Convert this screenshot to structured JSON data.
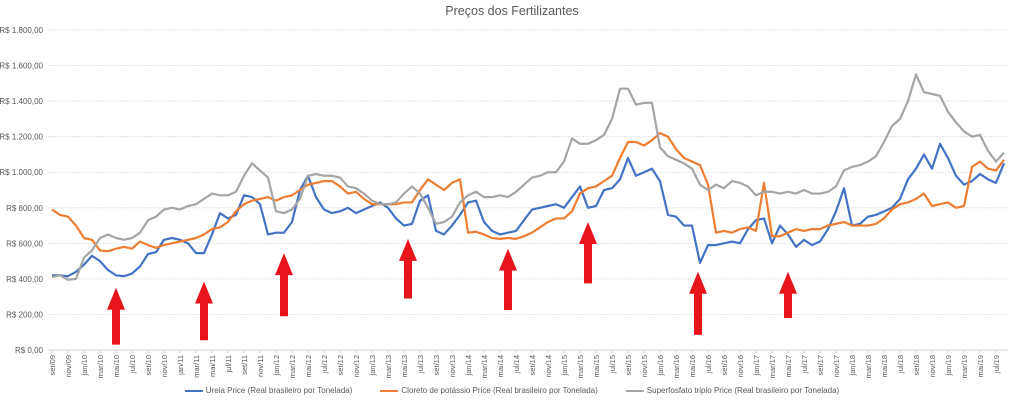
{
  "chart_data": {
    "type": "line",
    "title": "Preços dos Fertilizantes",
    "xlabel": "",
    "ylabel": "",
    "ylim": [
      0,
      1800
    ],
    "y_ticks": [
      "R$ 0,00",
      "R$ 200,00",
      "R$ 400,00",
      "R$ 600,00",
      "R$ 800,00",
      "R$ 1.000,00",
      "R$ 1.200,00",
      "R$ 1.400,00",
      "R$ 1.600,00",
      "R$ 1.800,00"
    ],
    "y_tick_values": [
      0,
      200,
      400,
      600,
      800,
      1000,
      1200,
      1400,
      1600,
      1800
    ],
    "grid": true,
    "legend_position": "bottom",
    "x_period": "monthly, set/09 to ago/19",
    "x_tick_labels": [
      "set/09",
      "nov/09",
      "jan/10",
      "mar/10",
      "mai/10",
      "jul/10",
      "set/10",
      "nov/10",
      "jan/11",
      "mar/11",
      "mai/11",
      "jul/11",
      "set/11",
      "nov/11",
      "jan/12",
      "mar/12",
      "mai/12",
      "jul/12",
      "set/12",
      "nov/12",
      "jan/13",
      "mar/13",
      "mai/13",
      "jul/13",
      "set/13",
      "nov/13",
      "jan/14",
      "mar/14",
      "mai/14",
      "jul/14",
      "set/14",
      "nov/14",
      "jan/15",
      "mar/15",
      "mai/15",
      "jul/15",
      "set/15",
      "nov/15",
      "jan/16",
      "mar/16",
      "mai/16",
      "jul/16",
      "set/16",
      "nov/16",
      "jan/17",
      "mar/17",
      "mai/17",
      "jul/17",
      "set/17",
      "nov/17",
      "jan/18",
      "mar/18",
      "mai/18",
      "jul/18",
      "set/18",
      "nov/18",
      "jan/19",
      "mar/19",
      "mai/19",
      "jul/19"
    ],
    "series": [
      {
        "name": "Ureia Price (Real brasileiro por Tonelada)",
        "color": "#4472c4",
        "values": [
          420,
          420,
          415,
          440,
          480,
          530,
          500,
          450,
          420,
          415,
          430,
          470,
          540,
          550,
          620,
          630,
          620,
          600,
          545,
          545,
          650,
          770,
          740,
          760,
          870,
          860,
          820,
          650,
          660,
          660,
          720,
          900,
          980,
          860,
          790,
          770,
          780,
          800,
          770,
          790,
          810,
          830,
          800,
          740,
          700,
          710,
          840,
          870,
          670,
          650,
          700,
          760,
          830,
          840,
          720,
          670,
          650,
          660,
          670,
          730,
          790,
          800,
          810,
          820,
          800,
          860,
          920,
          800,
          810,
          900,
          910,
          960,
          1080,
          980,
          1000,
          1020,
          950,
          760,
          750,
          700,
          700,
          490,
          590,
          590,
          600,
          610,
          600,
          680,
          730,
          740,
          600,
          700,
          650,
          580,
          620,
          590,
          610,
          680,
          780,
          910,
          700,
          710,
          750,
          760,
          780,
          800,
          850,
          960,
          1020,
          1100,
          1020,
          1160,
          1080,
          980,
          930,
          950,
          990,
          960,
          940,
          1050
        ]
      },
      {
        "name": "Cloreto de potássio Price (Real brasileiro por Tonelada)",
        "color": "#ed7d31",
        "values": [
          790,
          760,
          750,
          700,
          630,
          620,
          560,
          555,
          570,
          580,
          570,
          610,
          590,
          575,
          590,
          600,
          610,
          620,
          630,
          650,
          680,
          690,
          720,
          780,
          820,
          840,
          850,
          860,
          840,
          860,
          870,
          900,
          930,
          940,
          950,
          950,
          920,
          880,
          890,
          850,
          820,
          820,
          820,
          820,
          830,
          830,
          900,
          960,
          930,
          900,
          940,
          960,
          660,
          665,
          650,
          630,
          625,
          630,
          625,
          640,
          660,
          690,
          720,
          740,
          740,
          780,
          880,
          910,
          920,
          950,
          980,
          1080,
          1170,
          1170,
          1150,
          1180,
          1220,
          1200,
          1130,
          1080,
          1060,
          1040,
          930,
          660,
          670,
          660,
          680,
          690,
          670,
          940,
          640,
          640,
          660,
          680,
          670,
          680,
          680,
          700,
          710,
          720,
          700,
          700,
          700,
          710,
          740,
          790,
          820,
          830,
          850,
          880,
          810,
          820,
          830,
          800,
          810,
          1030,
          1060,
          1020,
          1010,
          1070
        ]
      },
      {
        "name": "Superfosfato triplo Price (Real brasileiro por Tonelada)",
        "color": "#a5a5a5",
        "values": [
          410,
          420,
          395,
          400,
          520,
          560,
          630,
          650,
          630,
          620,
          630,
          660,
          730,
          750,
          790,
          800,
          790,
          810,
          820,
          850,
          880,
          870,
          870,
          890,
          980,
          1050,
          1010,
          970,
          780,
          770,
          790,
          850,
          980,
          990,
          980,
          980,
          970,
          920,
          910,
          880,
          840,
          820,
          820,
          830,
          880,
          920,
          880,
          800,
          710,
          720,
          750,
          830,
          870,
          890,
          860,
          860,
          870,
          860,
          890,
          930,
          970,
          980,
          1000,
          1000,
          1060,
          1190,
          1160,
          1160,
          1180,
          1210,
          1300,
          1470,
          1470,
          1380,
          1390,
          1390,
          1140,
          1090,
          1070,
          1050,
          1020,
          930,
          900,
          930,
          910,
          950,
          940,
          920,
          870,
          890,
          890,
          880,
          890,
          880,
          900,
          880,
          880,
          890,
          920,
          1010,
          1030,
          1040,
          1060,
          1090,
          1170,
          1260,
          1300,
          1400,
          1550,
          1450,
          1440,
          1430,
          1340,
          1280,
          1230,
          1200,
          1210,
          1120,
          1060,
          1110
        ]
      }
    ],
    "annotations": {
      "type": "up-arrows",
      "color": "#e8141b",
      "arrows": [
        {
          "month_index": 8,
          "tip": 350,
          "base": 30
        },
        {
          "month_index": 19,
          "tip": 385,
          "base": 55
        },
        {
          "month_index": 29,
          "tip": 545,
          "base": 190
        },
        {
          "month_index": 44.5,
          "tip": 625,
          "base": 290
        },
        {
          "month_index": 57,
          "tip": 570,
          "base": 225
        },
        {
          "month_index": 67,
          "tip": 720,
          "base": 375
        },
        {
          "month_index": 80.75,
          "tip": 440,
          "base": 85
        },
        {
          "month_index": 92,
          "tip": 440,
          "base": 180
        }
      ]
    }
  }
}
